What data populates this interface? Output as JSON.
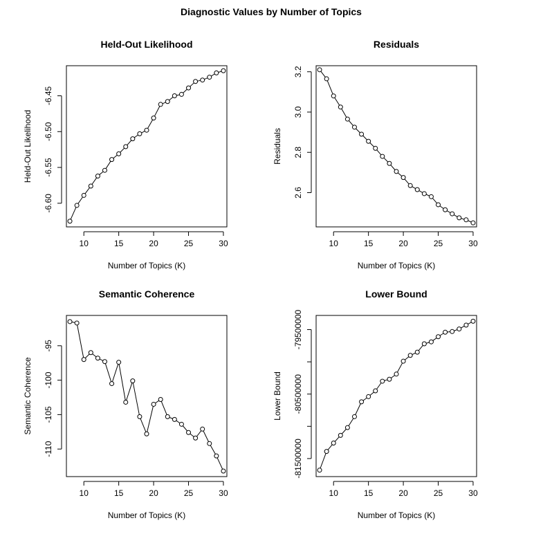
{
  "figure": {
    "title": "Diagnostic Values by Number of Topics"
  },
  "chart_data": [
    {
      "type": "line",
      "title": "Held-Out Likelihood",
      "xlabel": "Number of Topics (K)",
      "ylabel": "Held-Out Likelihood",
      "x": [
        8,
        9,
        10,
        11,
        12,
        13,
        14,
        15,
        16,
        17,
        18,
        19,
        20,
        21,
        22,
        23,
        24,
        25,
        26,
        27,
        28,
        29,
        30
      ],
      "values": [
        -6.625,
        -6.603,
        -6.589,
        -6.576,
        -6.562,
        -6.554,
        -6.539,
        -6.531,
        -6.521,
        -6.51,
        -6.503,
        -6.498,
        -6.481,
        -6.462,
        -6.458,
        -6.45,
        -6.448,
        -6.439,
        -6.43,
        -6.428,
        -6.424,
        -6.418,
        -6.415
      ],
      "xlim": [
        7.5,
        30.5
      ],
      "ylim": [
        -6.633,
        -6.408
      ],
      "xticks": [
        10,
        15,
        20,
        25,
        30
      ],
      "xtick_labels": [
        "10",
        "15",
        "20",
        "25",
        "30"
      ],
      "yticks": [
        -6.6,
        -6.55,
        -6.5,
        -6.45
      ],
      "ytick_labels": [
        "-6.60",
        "-6.55",
        "-6.50",
        "-6.45"
      ]
    },
    {
      "type": "line",
      "title": "Residuals",
      "xlabel": "Number of Topics (K)",
      "ylabel": "Residuals",
      "x": [
        8,
        9,
        10,
        11,
        12,
        13,
        14,
        15,
        16,
        17,
        18,
        19,
        20,
        21,
        22,
        23,
        24,
        25,
        26,
        27,
        28,
        29,
        30
      ],
      "values": [
        3.21,
        3.165,
        3.08,
        3.025,
        2.965,
        2.925,
        2.89,
        2.855,
        2.82,
        2.78,
        2.745,
        2.705,
        2.675,
        2.635,
        2.615,
        2.595,
        2.58,
        2.54,
        2.515,
        2.495,
        2.475,
        2.465,
        2.45
      ],
      "xlim": [
        7.5,
        30.5
      ],
      "ylim": [
        2.43,
        3.23
      ],
      "xticks": [
        10,
        15,
        20,
        25,
        30
      ],
      "xtick_labels": [
        "10",
        "15",
        "20",
        "25",
        "30"
      ],
      "yticks": [
        2.6,
        2.8,
        3.0,
        3.2
      ],
      "ytick_labels": [
        "2.6",
        "2.8",
        "3.0",
        "3.2"
      ]
    },
    {
      "type": "line",
      "title": "Semantic Coherence",
      "xlabel": "Number of Topics (K)",
      "ylabel": "Semantic Coherence",
      "x": [
        8,
        9,
        10,
        11,
        12,
        13,
        14,
        15,
        16,
        17,
        18,
        19,
        20,
        21,
        22,
        23,
        24,
        25,
        26,
        27,
        28,
        29,
        30
      ],
      "values": [
        -91.5,
        -91.7,
        -97.0,
        -96.0,
        -96.8,
        -97.3,
        -100.5,
        -97.4,
        -103.2,
        -100.1,
        -105.3,
        -107.8,
        -103.5,
        -102.8,
        -105.3,
        -105.7,
        -106.4,
        -107.6,
        -108.4,
        -107.1,
        -109.2,
        -111.0,
        -113.2
      ],
      "xlim": [
        7.5,
        30.5
      ],
      "ylim": [
        -114.0,
        -90.6
      ],
      "xticks": [
        10,
        15,
        20,
        25,
        30
      ],
      "xtick_labels": [
        "10",
        "15",
        "20",
        "25",
        "30"
      ],
      "yticks": [
        -110,
        -105,
        -100,
        -95
      ],
      "ytick_labels": [
        "-110",
        "-105",
        "-100",
        "-95"
      ]
    },
    {
      "type": "line",
      "title": "Lower Bound",
      "xlabel": "Number of Topics (K)",
      "ylabel": "Lower Bound",
      "x": [
        8,
        9,
        10,
        11,
        12,
        13,
        14,
        15,
        16,
        17,
        18,
        19,
        20,
        21,
        22,
        23,
        24,
        25,
        26,
        27,
        28,
        29,
        30
      ],
      "values": [
        -81680000,
        -81390000,
        -81260000,
        -81140000,
        -81020000,
        -80850000,
        -80620000,
        -80540000,
        -80450000,
        -80300000,
        -80270000,
        -80190000,
        -79990000,
        -79900000,
        -79850000,
        -79720000,
        -79690000,
        -79610000,
        -79540000,
        -79530000,
        -79490000,
        -79430000,
        -79370000
      ],
      "xlim": [
        7.5,
        30.5
      ],
      "ylim": [
        -81780000,
        -79280000
      ],
      "xticks": [
        10,
        15,
        20,
        25,
        30
      ],
      "xtick_labels": [
        "10",
        "15",
        "20",
        "25",
        "30"
      ],
      "yticks": [
        -81500000,
        -81000000,
        -80500000,
        -80000000,
        -79500000
      ],
      "ytick_labels": [
        "-81500000",
        "",
        "-80500000",
        "",
        "-79500000"
      ]
    }
  ]
}
